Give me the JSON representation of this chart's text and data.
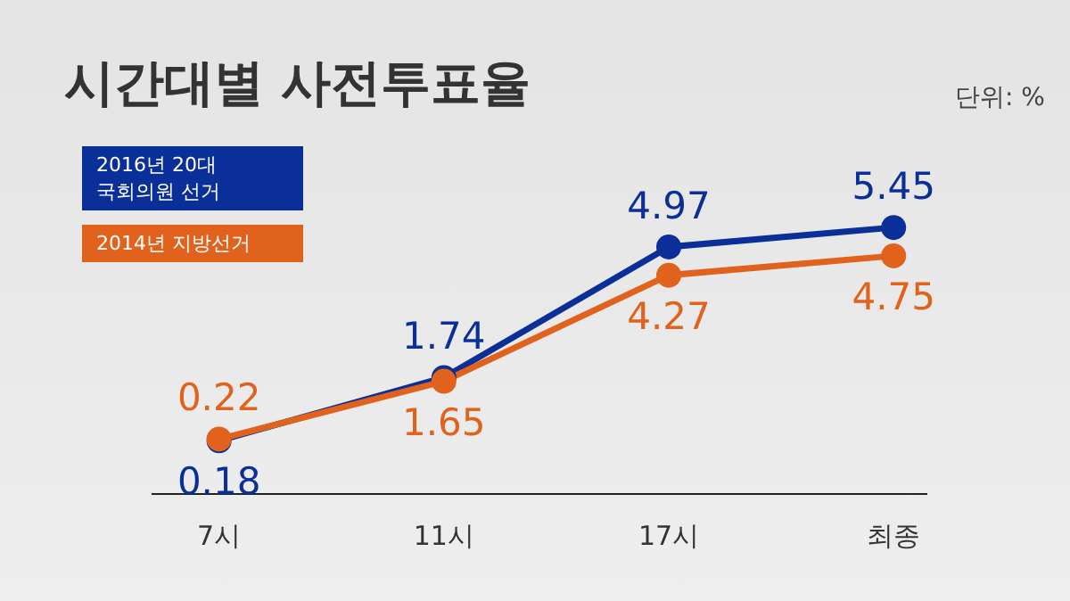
{
  "chart_data": {
    "type": "line",
    "title": "시간대별 사전투표율",
    "annotations": [
      "단위: %"
    ],
    "categories": [
      "7시",
      "11시",
      "17시",
      "최종"
    ],
    "series": [
      {
        "name": "2016년 20대 국회의원 선거",
        "color": "#0b2f98",
        "values": [
          0.18,
          1.74,
          4.97,
          5.45
        ]
      },
      {
        "name": "2014년 지방선거",
        "color": "#e0621c",
        "values": [
          0.22,
          1.65,
          4.27,
          4.75
        ]
      }
    ],
    "tick_labels": "x",
    "data_labels": true,
    "legend": "top left",
    "marker": "circle",
    "line_style": "solid",
    "grid": false
  }
}
